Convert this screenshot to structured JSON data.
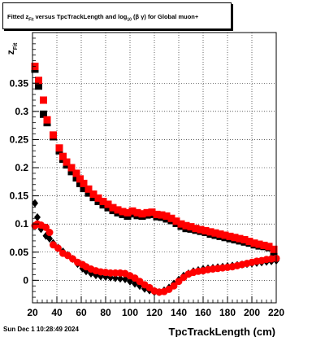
{
  "title": {
    "part1": "Fitted  z",
    "sub1": "Fit",
    "part2": "  versus TpcTrackLength and log",
    "sub2": "10",
    "part3": "(β  γ) for Global muon+"
  },
  "timestamp": "Sun Dec  1 10:28:49 2024",
  "chart_data": {
    "type": "scatter",
    "title": "Fitted z_Fit versus TpcTrackLength and log10(β γ) for Global muon+",
    "xlabel": "TpcTrackLength (cm)",
    "ylabel": "z_Fit",
    "xlim": [
      20,
      220
    ],
    "ylim": [
      -0.04,
      0.44
    ],
    "xticks": [
      20,
      40,
      60,
      80,
      100,
      120,
      140,
      160,
      180,
      200,
      220
    ],
    "yticks": [
      0,
      0.05,
      0.1,
      0.15,
      0.2,
      0.25,
      0.3,
      0.35
    ],
    "grid": true,
    "series": [
      {
        "marker": "square",
        "color": "#000000",
        "x": [
          22,
          25,
          29,
          32,
          37,
          42,
          45,
          48,
          52,
          56,
          59,
          62,
          66,
          70,
          74,
          78,
          82,
          86,
          90,
          94,
          98,
          102,
          106,
          110,
          114,
          118,
          122,
          126,
          130,
          134,
          138,
          142,
          146,
          150,
          154,
          158,
          162,
          166,
          170,
          174,
          178,
          182,
          186,
          190,
          194,
          198,
          202,
          206,
          210,
          214,
          218
        ],
        "y": [
          0.375,
          0.345,
          0.295,
          0.28,
          0.255,
          0.23,
          0.215,
          0.205,
          0.193,
          0.182,
          0.172,
          0.163,
          0.155,
          0.147,
          0.14,
          0.134,
          0.129,
          0.124,
          0.12,
          0.117,
          0.114,
          0.118,
          0.115,
          0.114,
          0.116,
          0.117,
          0.113,
          0.112,
          0.109,
          0.106,
          0.101,
          0.096,
          0.092,
          0.091,
          0.089,
          0.087,
          0.085,
          0.082,
          0.08,
          0.078,
          0.076,
          0.074,
          0.072,
          0.07,
          0.068,
          0.066,
          0.063,
          0.061,
          0.06,
          0.058,
          0.05
        ]
      },
      {
        "marker": "square",
        "color": "#ff0000",
        "x": [
          22,
          25,
          29,
          32,
          37,
          42,
          45,
          48,
          52,
          56,
          59,
          62,
          66,
          70,
          74,
          78,
          82,
          86,
          90,
          94,
          98,
          102,
          106,
          110,
          114,
          118,
          122,
          126,
          130,
          134,
          138,
          142,
          146,
          150,
          154,
          158,
          162,
          166,
          170,
          174,
          178,
          182,
          186,
          190,
          194,
          198,
          202,
          206,
          210,
          214,
          218
        ],
        "y": [
          0.38,
          0.355,
          0.32,
          0.285,
          0.258,
          0.235,
          0.22,
          0.21,
          0.2,
          0.19,
          0.18,
          0.172,
          0.162,
          0.153,
          0.146,
          0.14,
          0.135,
          0.129,
          0.125,
          0.122,
          0.12,
          0.123,
          0.12,
          0.118,
          0.12,
          0.121,
          0.117,
          0.116,
          0.114,
          0.11,
          0.105,
          0.1,
          0.097,
          0.095,
          0.092,
          0.09,
          0.088,
          0.086,
          0.084,
          0.082,
          0.08,
          0.078,
          0.076,
          0.074,
          0.072,
          0.069,
          0.066,
          0.064,
          0.062,
          0.06,
          0.055
        ]
      },
      {
        "marker": "diamond",
        "color": "#000000",
        "x": [
          22,
          24,
          27,
          31,
          34,
          37,
          41,
          45,
          49,
          53,
          57,
          61,
          64,
          68,
          72,
          76,
          80,
          84,
          88,
          92,
          96,
          100,
          104,
          108,
          112,
          116,
          120,
          124,
          128,
          132,
          136,
          140,
          144,
          148,
          152,
          156,
          160,
          164,
          168,
          172,
          176,
          180,
          184,
          188,
          192,
          196,
          200,
          204,
          208,
          212,
          216,
          220
        ],
        "y": [
          0.137,
          0.112,
          0.091,
          0.079,
          0.074,
          0.066,
          0.058,
          0.051,
          0.045,
          0.038,
          0.029,
          0.021,
          0.016,
          0.012,
          0.009,
          0.007,
          0.006,
          0.005,
          0.004,
          0.003,
          0.002,
          -0.002,
          -0.006,
          -0.01,
          -0.015,
          -0.018,
          -0.021,
          -0.021,
          -0.018,
          -0.013,
          -0.006,
          0.001,
          0.008,
          0.012,
          0.016,
          0.018,
          0.02,
          0.021,
          0.022,
          0.023,
          0.024,
          0.025,
          0.026,
          0.027,
          0.028,
          0.029,
          0.03,
          0.031,
          0.032,
          0.033,
          0.034,
          0.035
        ]
      },
      {
        "marker": "circle",
        "color": "#ff0000",
        "x": [
          22,
          24,
          27,
          31,
          34,
          37,
          41,
          45,
          49,
          53,
          57,
          61,
          64,
          68,
          72,
          76,
          80,
          84,
          88,
          92,
          96,
          100,
          104,
          108,
          112,
          116,
          120,
          124,
          128,
          132,
          136,
          140,
          144,
          148,
          152,
          156,
          160,
          164,
          168,
          172,
          176,
          180,
          184,
          188,
          192,
          196,
          200,
          204,
          208,
          212,
          216,
          220
        ],
        "y": [
          0.097,
          0.1,
          0.098,
          0.094,
          0.085,
          0.063,
          0.057,
          0.048,
          0.044,
          0.038,
          0.032,
          0.028,
          0.024,
          0.02,
          0.017,
          0.015,
          0.014,
          0.013,
          0.013,
          0.013,
          0.012,
          0.008,
          0.004,
          -0.002,
          -0.008,
          -0.013,
          -0.019,
          -0.021,
          -0.02,
          -0.016,
          -0.01,
          -0.002,
          0.005,
          0.011,
          0.014,
          0.016,
          0.017,
          0.019,
          0.02,
          0.021,
          0.022,
          0.023,
          0.024,
          0.026,
          0.028,
          0.03,
          0.032,
          0.034,
          0.035,
          0.037,
          0.038,
          0.039
        ]
      }
    ]
  }
}
